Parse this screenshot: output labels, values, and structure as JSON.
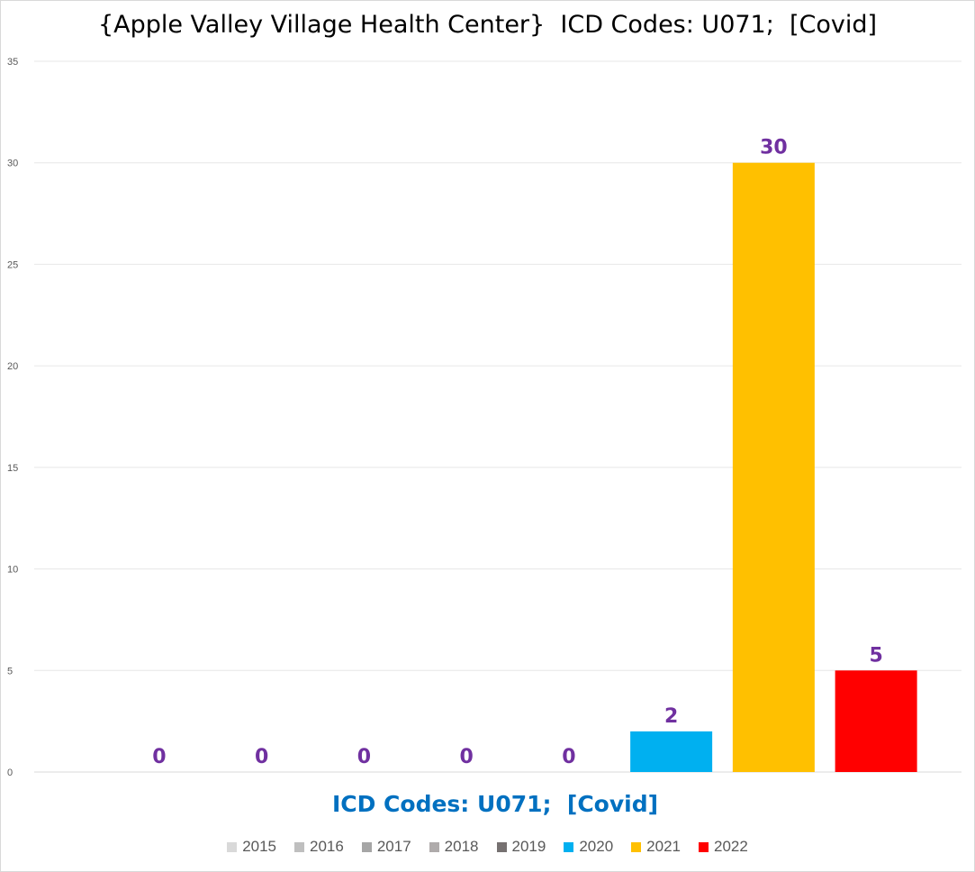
{
  "chart_data": {
    "type": "bar",
    "title": "{Apple Valley Village Health Center}  ICD Codes: U071;  [Covid]",
    "xlabel": "ICD Codes: U071;  [Covid]",
    "ylabel": "",
    "ylim": [
      0,
      35
    ],
    "yticks": [
      "0",
      "5",
      "10",
      "15",
      "20",
      "25",
      "30",
      "35"
    ],
    "grid": true,
    "legend_position": "bottom",
    "series": [
      {
        "name": "2015",
        "value": 0,
        "color": "#d9d9d9"
      },
      {
        "name": "2016",
        "value": 0,
        "color": "#bfbfbf"
      },
      {
        "name": "2017",
        "value": 0,
        "color": "#a6a6a6"
      },
      {
        "name": "2018",
        "value": 0,
        "color": "#afabab"
      },
      {
        "name": "2019",
        "value": 0,
        "color": "#767171"
      },
      {
        "name": "2020",
        "value": 2,
        "color": "#00b0f0"
      },
      {
        "name": "2021",
        "value": 30,
        "color": "#ffc000"
      },
      {
        "name": "2022",
        "value": 5,
        "color": "#ff0000"
      }
    ],
    "data_label_color": "#7030a0"
  }
}
